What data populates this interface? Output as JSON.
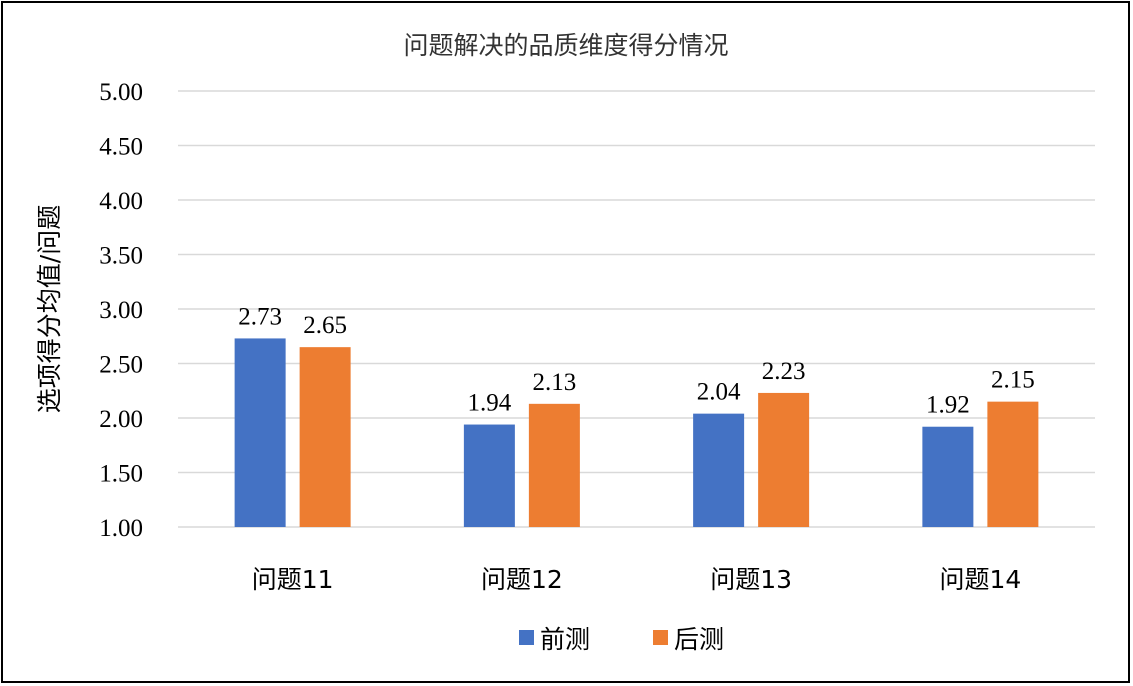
{
  "chart_data": {
    "type": "bar",
    "title": "问题解决的品质维度得分情况",
    "xlabel": "",
    "ylabel": "选项得分均值/问题",
    "ylim": [
      1.0,
      5.0
    ],
    "yticks": [
      "1.00",
      "1.50",
      "2.00",
      "2.50",
      "3.00",
      "3.50",
      "4.00",
      "4.50",
      "5.00"
    ],
    "categories": [
      "问题11",
      "问题12",
      "问题13",
      "问题14"
    ],
    "series": [
      {
        "name": "前测",
        "values": [
          2.73,
          1.94,
          2.04,
          1.92
        ],
        "labels": [
          "2.73",
          "1.94",
          "2.04",
          "1.92"
        ],
        "color": "#4472c4"
      },
      {
        "name": "后测",
        "values": [
          2.65,
          2.13,
          2.23,
          2.15
        ],
        "labels": [
          "2.65",
          "2.13",
          "2.23",
          "2.15"
        ],
        "color": "#ed7d31"
      }
    ],
    "grid": true,
    "legend_position": "bottom"
  }
}
